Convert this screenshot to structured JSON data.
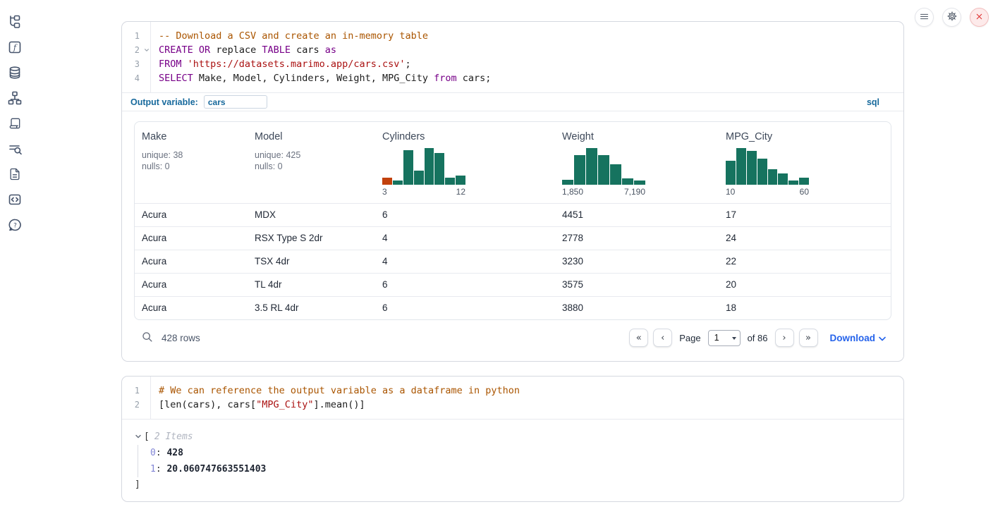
{
  "colors": {
    "accent_blue": "#17699c",
    "histogram_teal": "#16735f",
    "histogram_orange": "#c2410c",
    "link_blue": "#2563eb",
    "close_red": "#dc2626"
  },
  "sidebar": {
    "icons": [
      "file-explorer",
      "variables",
      "data-sources",
      "dependency-graph",
      "scratchpad",
      "logs",
      "documentation",
      "snippets",
      "help"
    ]
  },
  "topbar": {
    "icons": [
      "menu",
      "settings",
      "shutdown"
    ]
  },
  "cells": [
    {
      "type": "sql",
      "lines": [
        {
          "num": "1",
          "fold": false,
          "tokens": [
            [
              "com",
              "-- Download a CSV and create an in-memory table"
            ]
          ]
        },
        {
          "num": "2",
          "fold": true,
          "tokens": [
            [
              "kw",
              "CREATE"
            ],
            [
              "pl",
              " "
            ],
            [
              "kw",
              "OR"
            ],
            [
              "pl",
              " replace "
            ],
            [
              "kw",
              "TABLE"
            ],
            [
              "pl",
              " cars "
            ],
            [
              "kw",
              "as"
            ]
          ]
        },
        {
          "num": "3",
          "fold": false,
          "tokens": [
            [
              "kw",
              "FROM"
            ],
            [
              "pl",
              " "
            ],
            [
              "str",
              "'https://datasets.marimo.app/cars.csv'"
            ],
            [
              "pl",
              ";"
            ]
          ]
        },
        {
          "num": "4",
          "fold": false,
          "tokens": [
            [
              "kw",
              "SELECT"
            ],
            [
              "pl",
              " Make, Model, Cylinders, Weight, MPG_City "
            ],
            [
              "kw",
              "from"
            ],
            [
              "pl",
              " cars;"
            ]
          ]
        }
      ],
      "output_variable_label": "Output variable:",
      "output_variable_value": "cars",
      "language_badge": "sql",
      "table": {
        "columns": [
          {
            "label": "Make",
            "stats": [
              "unique: 38",
              "nulls: 0"
            ]
          },
          {
            "label": "Model",
            "stats": [
              "unique: 425",
              "nulls: 0"
            ]
          },
          {
            "label": "Cylinders",
            "histogram": {
              "type": "bar",
              "bars": [
                0.19,
                0.12,
                0.94,
                0.38,
                1,
                0.86,
                0.19,
                0.25
              ],
              "min_label": "3",
              "max_label": "12",
              "bar_color": "#16735f",
              "first_bar_color": "#c2410c"
            }
          },
          {
            "label": "Weight",
            "histogram": {
              "type": "bar",
              "bars": [
                0.14,
                0.8,
                1,
                0.8,
                0.55,
                0.18,
                0.12
              ],
              "min_label": "1,850",
              "max_label": "7,190",
              "bar_color": "#16735f"
            }
          },
          {
            "label": "MPG_City",
            "histogram": {
              "type": "bar",
              "bars": [
                0.65,
                1,
                0.92,
                0.71,
                0.43,
                0.31,
                0.12,
                0.2
              ],
              "min_label": "10",
              "max_label": "60",
              "bar_color": "#16735f"
            }
          }
        ],
        "rows": [
          [
            "Acura",
            "MDX",
            "6",
            "4451",
            "17"
          ],
          [
            "Acura",
            "RSX Type S 2dr",
            "4",
            "2778",
            "24"
          ],
          [
            "Acura",
            "TSX 4dr",
            "4",
            "3230",
            "22"
          ],
          [
            "Acura",
            "TL 4dr",
            "6",
            "3575",
            "20"
          ],
          [
            "Acura",
            "3.5 RL 4dr",
            "6",
            "3880",
            "18"
          ]
        ]
      },
      "footer": {
        "row_count": "428 rows",
        "page_label": "Page",
        "page_value": "1",
        "of_label": "of 86",
        "download_label": "Download",
        "icons": {
          "first": "«",
          "prev": "‹",
          "next": "›",
          "last": "»"
        }
      }
    },
    {
      "type": "python",
      "lines": [
        {
          "num": "1",
          "fold": false,
          "tokens": [
            [
              "com",
              "# We can reference the output variable as a dataframe in python"
            ]
          ]
        },
        {
          "num": "2",
          "fold": false,
          "tokens": [
            [
              "pl",
              "[len(cars), cars["
            ],
            [
              "str",
              "\"MPG_City\""
            ],
            [
              "pl",
              "].mean()]"
            ]
          ]
        }
      ],
      "result": {
        "open_bracket": "[",
        "items_label": "2 Items",
        "entries": [
          {
            "key": "0",
            "value": "428"
          },
          {
            "key": "1",
            "value": "20.060747663551403"
          }
        ],
        "close_bracket": "]"
      }
    }
  ]
}
